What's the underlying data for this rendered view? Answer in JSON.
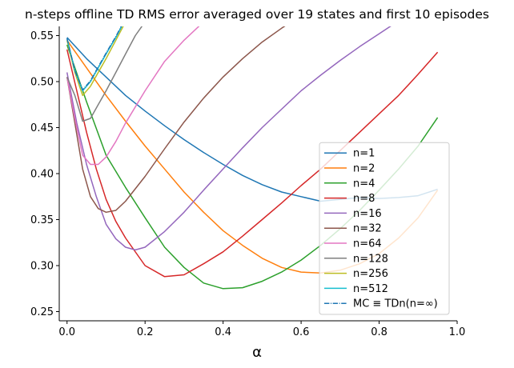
{
  "chart_data": {
    "type": "line",
    "title": "n-steps offline TD RMS error averaged over 19 states and first 10 episodes",
    "xlabel": "α",
    "ylabel": "",
    "xlim": [
      -0.02,
      1.0
    ],
    "ylim": [
      0.24,
      0.56
    ],
    "xticks": [
      0.0,
      0.2,
      0.4,
      0.6,
      0.8,
      1.0
    ],
    "xtick_labels": [
      "0.0",
      "0.2",
      "0.4",
      "0.6",
      "0.8",
      "1.0"
    ],
    "yticks": [
      0.25,
      0.3,
      0.35,
      0.4,
      0.45,
      0.5,
      0.55
    ],
    "ytick_labels": [
      "0.25",
      "0.30",
      "0.35",
      "0.40",
      "0.45",
      "0.50",
      "0.55"
    ],
    "grid": false,
    "legend_position": "lower-right",
    "series": [
      {
        "name": "n=1",
        "color": "#1f77b4",
        "style": "solid",
        "x": [
          0.0,
          0.05,
          0.1,
          0.15,
          0.2,
          0.25,
          0.3,
          0.35,
          0.4,
          0.45,
          0.5,
          0.55,
          0.6,
          0.65,
          0.7,
          0.75,
          0.8,
          0.85,
          0.9,
          0.95
        ],
        "y": [
          0.548,
          0.525,
          0.505,
          0.485,
          0.468,
          0.452,
          0.437,
          0.423,
          0.41,
          0.398,
          0.388,
          0.38,
          0.375,
          0.37,
          0.372,
          0.374,
          0.373,
          0.374,
          0.376,
          0.383
        ]
      },
      {
        "name": "n=2",
        "color": "#ff7f0e",
        "style": "solid",
        "x": [
          0.0,
          0.05,
          0.1,
          0.15,
          0.2,
          0.25,
          0.3,
          0.35,
          0.4,
          0.45,
          0.5,
          0.55,
          0.6,
          0.65,
          0.7,
          0.75,
          0.8,
          0.85,
          0.9,
          0.95
        ],
        "y": [
          0.545,
          0.515,
          0.485,
          0.457,
          0.43,
          0.405,
          0.38,
          0.358,
          0.338,
          0.322,
          0.308,
          0.298,
          0.293,
          0.292,
          0.295,
          0.302,
          0.313,
          0.33,
          0.352,
          0.382
        ]
      },
      {
        "name": "n=4",
        "color": "#2ca02c",
        "style": "solid",
        "x": [
          0.0,
          0.05,
          0.1,
          0.15,
          0.2,
          0.25,
          0.3,
          0.35,
          0.4,
          0.45,
          0.5,
          0.55,
          0.6,
          0.65,
          0.7,
          0.75,
          0.8,
          0.85,
          0.9,
          0.95
        ],
        "y": [
          0.54,
          0.478,
          0.42,
          0.385,
          0.352,
          0.32,
          0.298,
          0.281,
          0.275,
          0.276,
          0.283,
          0.293,
          0.306,
          0.322,
          0.34,
          0.36,
          0.382,
          0.405,
          0.43,
          0.461
        ]
      },
      {
        "name": "n=8",
        "color": "#d62728",
        "style": "solid",
        "x": [
          0.0,
          0.025,
          0.05,
          0.075,
          0.1,
          0.125,
          0.15,
          0.2,
          0.25,
          0.3,
          0.35,
          0.4,
          0.45,
          0.5,
          0.55,
          0.6,
          0.65,
          0.7,
          0.75,
          0.8,
          0.85,
          0.9,
          0.95
        ],
        "y": [
          0.535,
          0.49,
          0.445,
          0.405,
          0.372,
          0.348,
          0.33,
          0.3,
          0.288,
          0.29,
          0.302,
          0.315,
          0.332,
          0.35,
          0.368,
          0.387,
          0.405,
          0.425,
          0.445,
          0.465,
          0.485,
          0.508,
          0.532
        ]
      },
      {
        "name": "n=16",
        "color": "#9467bd",
        "style": "solid",
        "x": [
          0.0,
          0.025,
          0.05,
          0.075,
          0.1,
          0.125,
          0.15,
          0.175,
          0.2,
          0.25,
          0.3,
          0.35,
          0.4,
          0.45,
          0.5,
          0.55,
          0.6,
          0.65,
          0.7,
          0.75,
          0.8,
          0.85,
          0.9,
          0.95
        ],
        "y": [
          0.51,
          0.455,
          0.41,
          0.375,
          0.345,
          0.329,
          0.32,
          0.317,
          0.32,
          0.337,
          0.358,
          0.382,
          0.405,
          0.428,
          0.45,
          0.47,
          0.49,
          0.507,
          0.523,
          0.538,
          0.552,
          0.566,
          0.58,
          0.595
        ]
      },
      {
        "name": "n=32",
        "color": "#8c564b",
        "style": "solid",
        "x": [
          0.0,
          0.02,
          0.04,
          0.06,
          0.08,
          0.1,
          0.125,
          0.15,
          0.2,
          0.25,
          0.3,
          0.35,
          0.4,
          0.45,
          0.5,
          0.55,
          0.6
        ],
        "y": [
          0.505,
          0.455,
          0.405,
          0.375,
          0.362,
          0.358,
          0.36,
          0.37,
          0.397,
          0.427,
          0.456,
          0.482,
          0.505,
          0.525,
          0.543,
          0.558,
          0.572
        ]
      },
      {
        "name": "n=64",
        "color": "#e377c2",
        "style": "solid",
        "x": [
          0.0,
          0.02,
          0.04,
          0.06,
          0.08,
          0.1,
          0.125,
          0.15,
          0.2,
          0.25,
          0.3,
          0.35
        ],
        "y": [
          0.505,
          0.46,
          0.42,
          0.41,
          0.41,
          0.418,
          0.435,
          0.455,
          0.49,
          0.522,
          0.545,
          0.565
        ]
      },
      {
        "name": "n=128",
        "color": "#7f7f7f",
        "style": "solid",
        "x": [
          0.0,
          0.02,
          0.04,
          0.06,
          0.08,
          0.1,
          0.125,
          0.15,
          0.175,
          0.2
        ],
        "y": [
          0.505,
          0.485,
          0.457,
          0.46,
          0.475,
          0.49,
          0.51,
          0.53,
          0.55,
          0.565
        ]
      },
      {
        "name": "n=256",
        "color": "#bcbd22",
        "style": "solid",
        "x": [
          0.0,
          0.02,
          0.04,
          0.06,
          0.08,
          0.1,
          0.125,
          0.15
        ],
        "y": [
          0.545,
          0.51,
          0.485,
          0.495,
          0.51,
          0.525,
          0.545,
          0.565
        ]
      },
      {
        "name": "n=512",
        "color": "#17becf",
        "style": "solid",
        "x": [
          0.0,
          0.02,
          0.04,
          0.06,
          0.08,
          0.1,
          0.125,
          0.15
        ],
        "y": [
          0.547,
          0.512,
          0.49,
          0.5,
          0.515,
          0.53,
          0.548,
          0.568
        ]
      },
      {
        "name": "MC ≡ TDn(n=∞)",
        "color": "#1f77b4",
        "style": "dashdot",
        "x": [
          0.0,
          0.02,
          0.04,
          0.06,
          0.08,
          0.1,
          0.125,
          0.15
        ],
        "y": [
          0.547,
          0.512,
          0.491,
          0.501,
          0.516,
          0.531,
          0.549,
          0.569
        ]
      }
    ]
  }
}
